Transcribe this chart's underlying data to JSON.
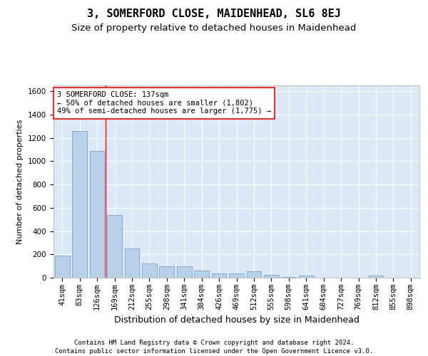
{
  "title": "3, SOMERFORD CLOSE, MAIDENHEAD, SL6 8EJ",
  "subtitle": "Size of property relative to detached houses in Maidenhead",
  "xlabel": "Distribution of detached houses by size in Maidenhead",
  "ylabel": "Number of detached properties",
  "categories": [
    "41sqm",
    "83sqm",
    "126sqm",
    "169sqm",
    "212sqm",
    "255sqm",
    "298sqm",
    "341sqm",
    "384sqm",
    "426sqm",
    "469sqm",
    "512sqm",
    "555sqm",
    "598sqm",
    "641sqm",
    "684sqm",
    "727sqm",
    "769sqm",
    "812sqm",
    "855sqm",
    "898sqm"
  ],
  "values": [
    190,
    1260,
    1090,
    540,
    250,
    120,
    100,
    100,
    60,
    35,
    35,
    55,
    25,
    5,
    20,
    0,
    0,
    0,
    20,
    0,
    0
  ],
  "bar_color": "#b8d0e8",
  "bar_edge_color": "#6699cc",
  "background_color": "#dce8f5",
  "grid_color": "#ffffff",
  "vline_x": 2.5,
  "vline_color": "red",
  "annotation_text": "3 SOMERFORD CLOSE: 137sqm\n← 50% of detached houses are smaller (1,802)\n49% of semi-detached houses are larger (1,775) →",
  "annotation_box_color": "white",
  "annotation_box_edge": "red",
  "ylim": [
    0,
    1650
  ],
  "yticks": [
    0,
    200,
    400,
    600,
    800,
    1000,
    1200,
    1400,
    1600
  ],
  "footer_line1": "Contains HM Land Registry data © Crown copyright and database right 2024.",
  "footer_line2": "Contains public sector information licensed under the Open Government Licence v3.0.",
  "title_fontsize": 11,
  "subtitle_fontsize": 9.5,
  "ylabel_fontsize": 8,
  "xlabel_fontsize": 9,
  "tick_fontsize": 7.5,
  "annotation_fontsize": 7.5,
  "footer_fontsize": 6.5
}
